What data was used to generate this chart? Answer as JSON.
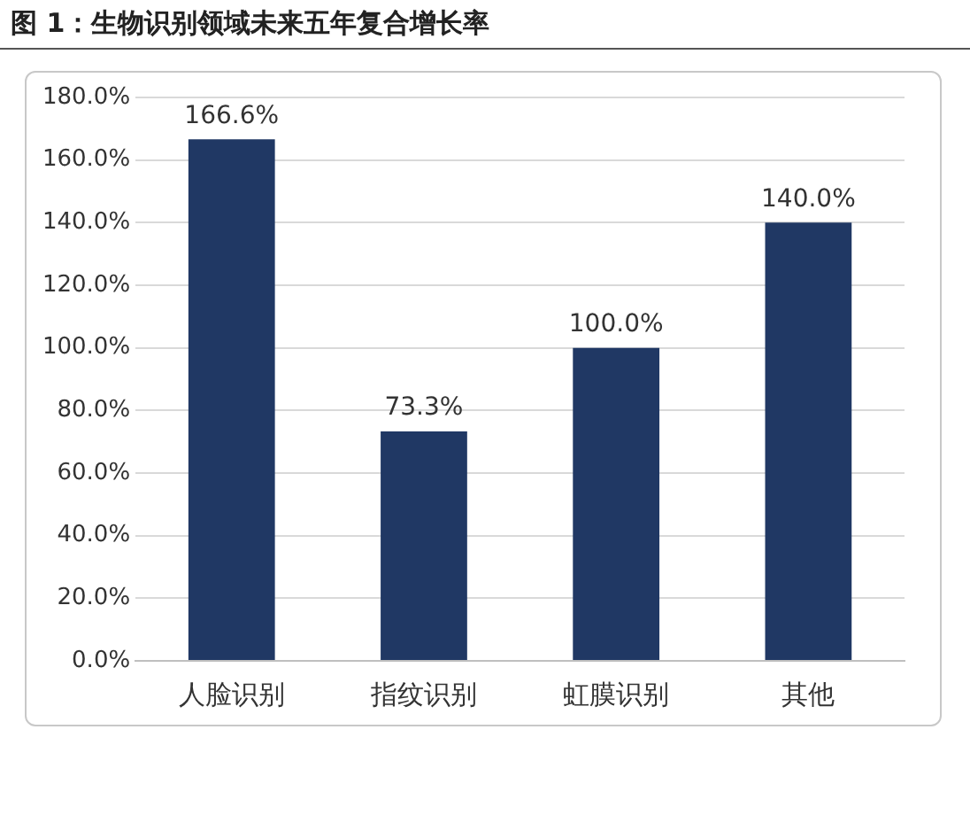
{
  "chart_data": {
    "type": "bar",
    "title": "图 1：生物识别领域未来五年复合增长率",
    "categories": [
      "人脸识别",
      "指纹识别",
      "虹膜识别",
      "其他"
    ],
    "values": [
      166.6,
      73.3,
      100.0,
      140.0
    ],
    "value_labels": [
      "166.6%",
      "73.3%",
      "100.0%",
      "140.0%"
    ],
    "color": "#203864",
    "ylim": [
      0,
      180
    ],
    "yticks": [
      {
        "value": 0,
        "label": "0.0%"
      },
      {
        "value": 20,
        "label": "20.0%"
      },
      {
        "value": 40,
        "label": "40.0%"
      },
      {
        "value": 60,
        "label": "60.0%"
      },
      {
        "value": 80,
        "label": "80.0%"
      },
      {
        "value": 100,
        "label": "100.0%"
      },
      {
        "value": 120,
        "label": "120.0%"
      },
      {
        "value": 140,
        "label": "140.0%"
      },
      {
        "value": 160,
        "label": "160.0%"
      },
      {
        "value": 180,
        "label": "180.0%"
      }
    ],
    "grid": "y",
    "legend": false
  }
}
